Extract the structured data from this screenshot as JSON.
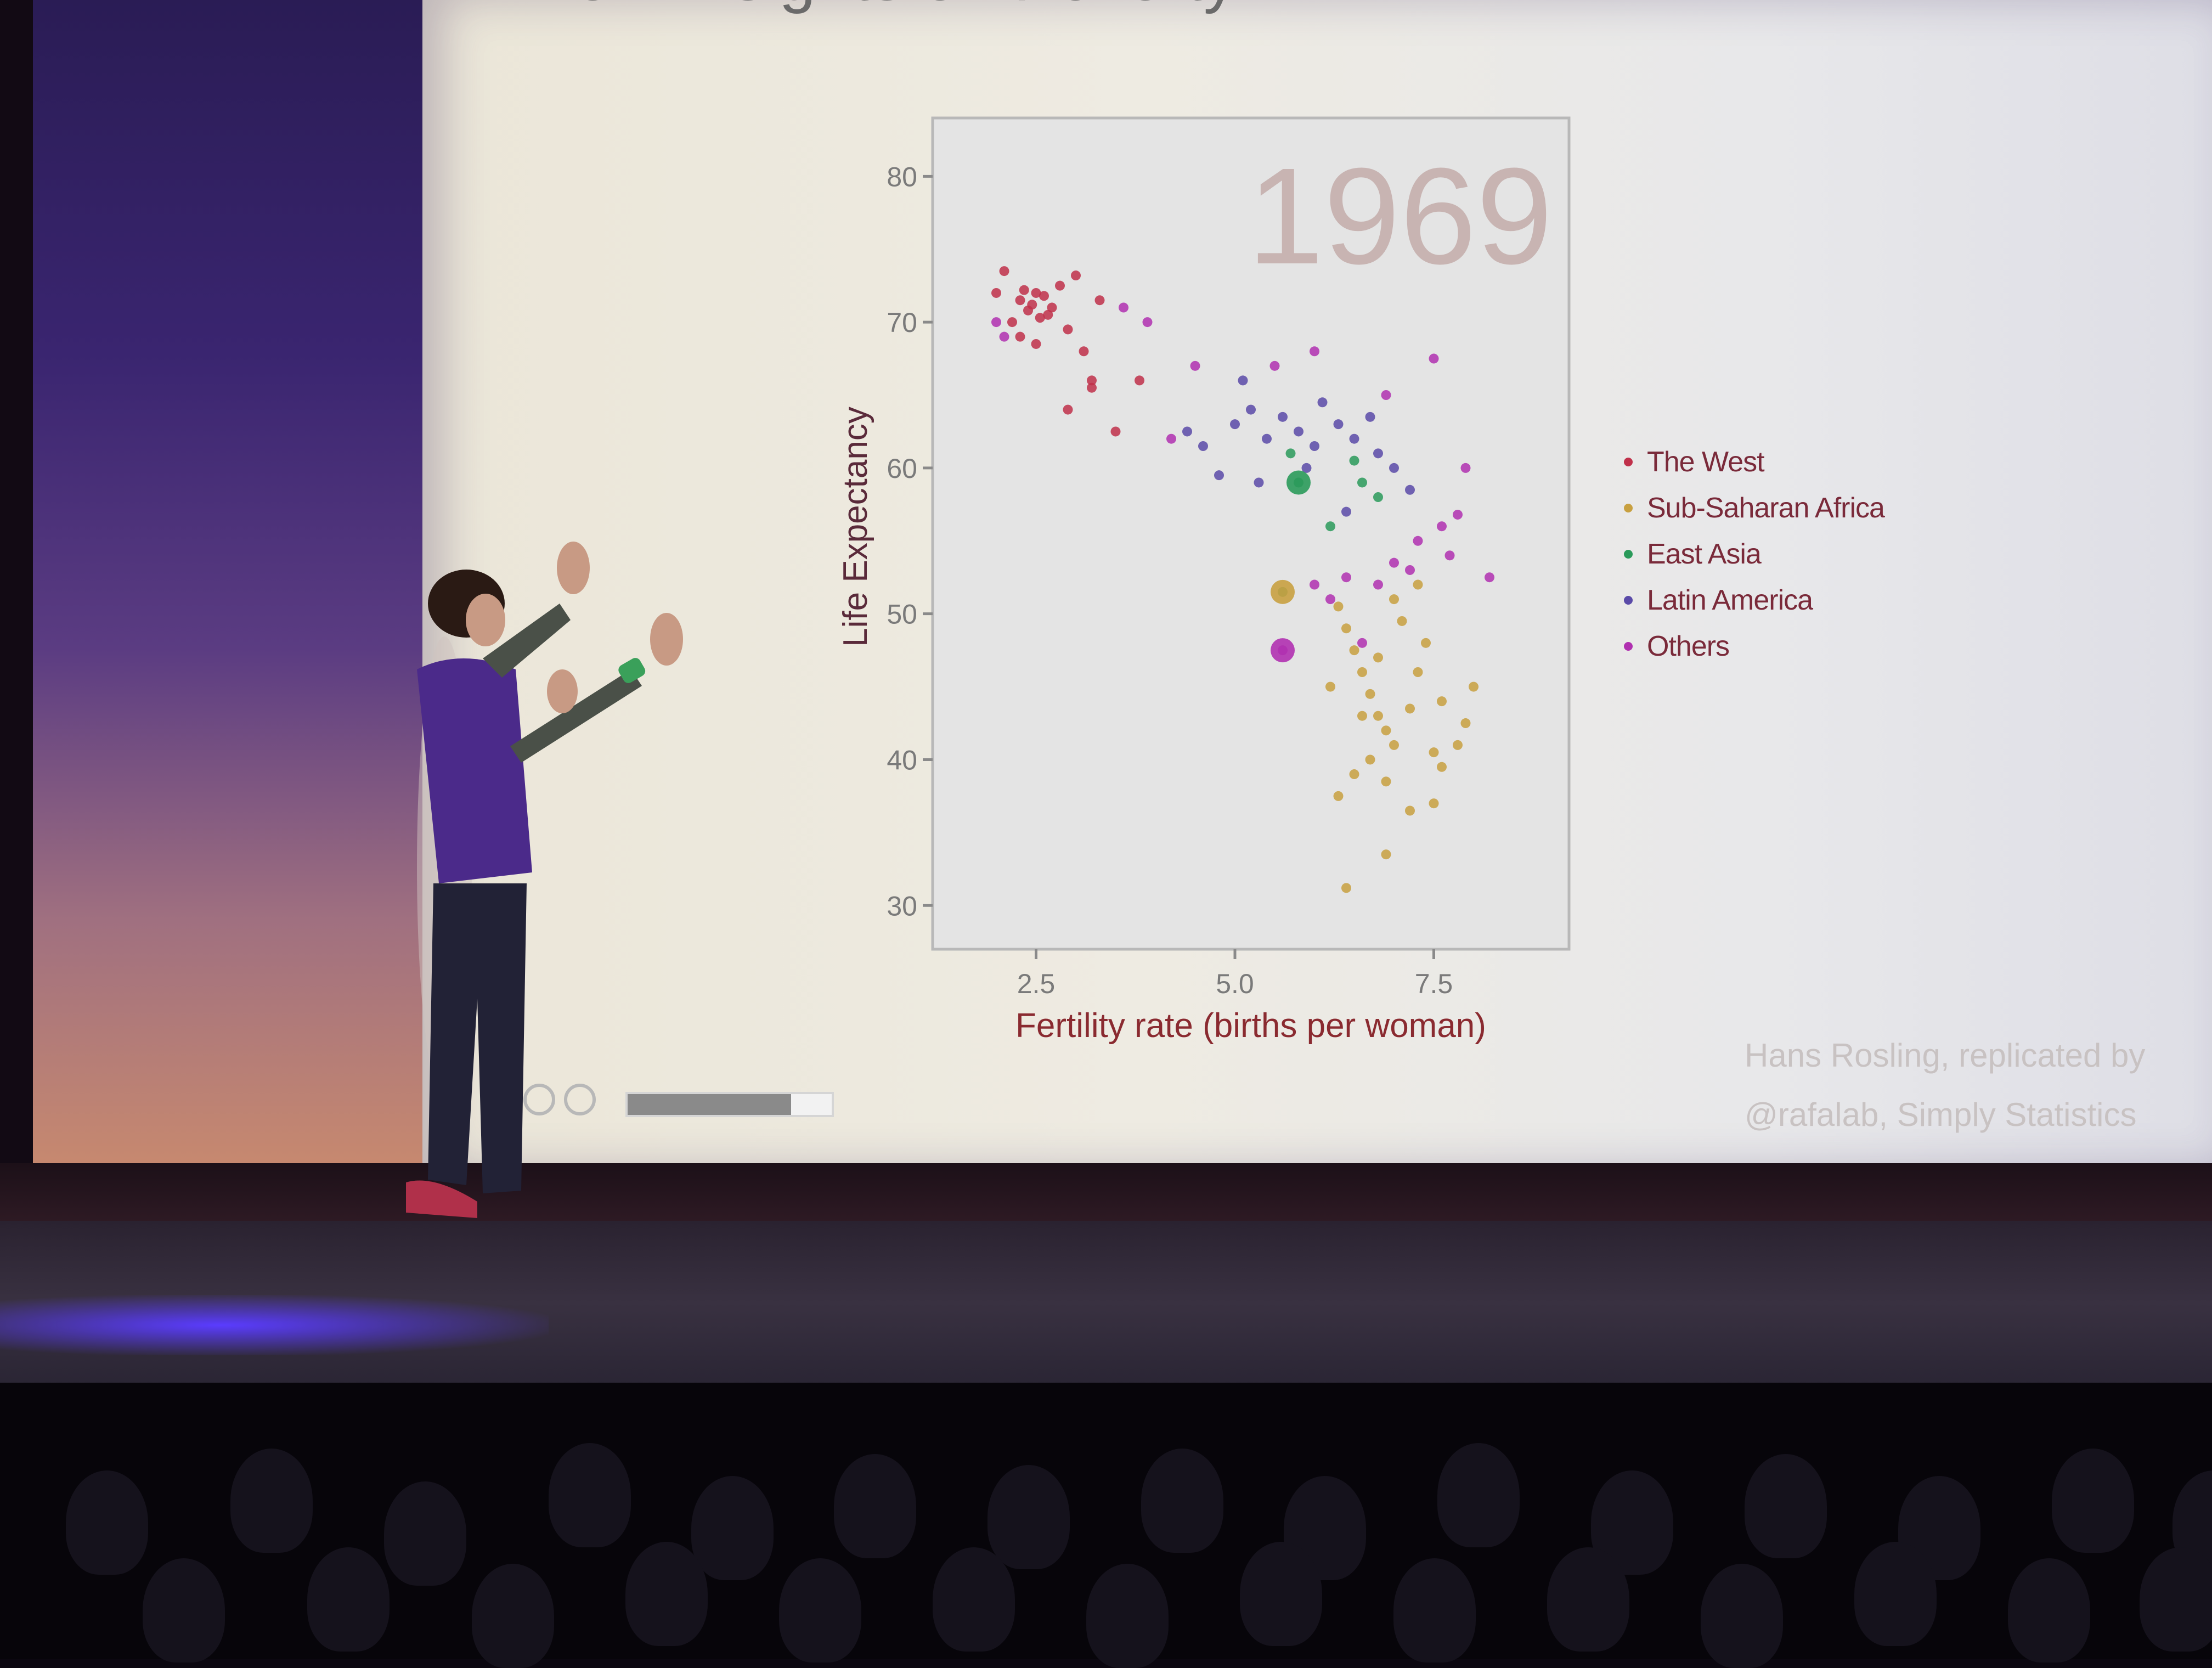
{
  "slide": {
    "title": "New Insights on Poverty",
    "credit_line1": "Hans Rosling, replicated by",
    "credit_line2": "@rafalab, Simply Statistics",
    "progress_fraction": 0.8
  },
  "chart_data": {
    "type": "scatter",
    "title": "1969",
    "xlabel": "Fertility rate (births per woman)",
    "ylabel": "Life Expectancy",
    "xlim": [
      1.2,
      9.2
    ],
    "ylim": [
      27,
      84
    ],
    "xticks": [
      2.5,
      5.0,
      7.5
    ],
    "xtick_labels": [
      "2.5",
      "5.0",
      "7.5"
    ],
    "yticks": [
      30,
      40,
      50,
      60,
      70,
      80
    ],
    "ytick_labels": [
      "30",
      "40",
      "50",
      "60",
      "70",
      "80"
    ],
    "legend_placement": "right",
    "series": [
      {
        "name": "The West",
        "color": "#c0304a",
        "points": [
          [
            2.0,
            72
          ],
          [
            2.1,
            73.5
          ],
          [
            2.2,
            70
          ],
          [
            2.3,
            71.5
          ],
          [
            2.35,
            72.2
          ],
          [
            2.4,
            70.8
          ],
          [
            2.45,
            71.2
          ],
          [
            2.5,
            72
          ],
          [
            2.55,
            70.3
          ],
          [
            2.6,
            71.8
          ],
          [
            2.65,
            70.5
          ],
          [
            2.7,
            71
          ],
          [
            2.8,
            72.5
          ],
          [
            2.9,
            69.5
          ],
          [
            3.0,
            73.2
          ],
          [
            3.1,
            68
          ],
          [
            3.2,
            66
          ],
          [
            3.3,
            71.5
          ],
          [
            2.3,
            69
          ],
          [
            2.5,
            68.5
          ],
          [
            2.9,
            64
          ],
          [
            3.5,
            62.5
          ],
          [
            3.2,
            65.5
          ],
          [
            3.8,
            66
          ]
        ]
      },
      {
        "name": "Sub-Saharan Africa",
        "color": "#c8a040",
        "points": [
          [
            6.3,
            50.5
          ],
          [
            6.4,
            49
          ],
          [
            6.5,
            47.5
          ],
          [
            6.6,
            46
          ],
          [
            6.7,
            44.5
          ],
          [
            6.8,
            43
          ],
          [
            6.9,
            42
          ],
          [
            7.0,
            41
          ],
          [
            6.7,
            40
          ],
          [
            6.5,
            39
          ],
          [
            7.2,
            43.5
          ],
          [
            7.3,
            46
          ],
          [
            7.5,
            40.5
          ],
          [
            7.6,
            39.5
          ],
          [
            7.8,
            41
          ],
          [
            7.9,
            42.5
          ],
          [
            6.2,
            45
          ],
          [
            6.8,
            47
          ],
          [
            7.1,
            49.5
          ],
          [
            7.4,
            48
          ],
          [
            7.0,
            51
          ],
          [
            6.3,
            37.5
          ],
          [
            7.5,
            37
          ],
          [
            6.4,
            31.2
          ],
          [
            6.9,
            33.5
          ],
          [
            7.2,
            36.5
          ],
          [
            7.6,
            44
          ],
          [
            8.0,
            45
          ],
          [
            7.3,
            52
          ],
          [
            6.6,
            43
          ],
          [
            6.9,
            38.5
          ]
        ]
      },
      {
        "name": "East Asia",
        "color": "#2a9a5a",
        "points": [
          [
            5.8,
            59
          ],
          [
            5.6,
            51.5
          ],
          [
            6.5,
            60.5
          ],
          [
            6.6,
            59
          ],
          [
            6.2,
            56
          ],
          [
            5.7,
            61
          ],
          [
            6.8,
            58
          ]
        ]
      },
      {
        "name": "Latin America",
        "color": "#5a4aa8",
        "points": [
          [
            4.8,
            59.5
          ],
          [
            5.0,
            63
          ],
          [
            5.2,
            64
          ],
          [
            5.4,
            62
          ],
          [
            5.6,
            63.5
          ],
          [
            5.8,
            62.5
          ],
          [
            6.0,
            61.5
          ],
          [
            6.3,
            63
          ],
          [
            6.5,
            62
          ],
          [
            6.8,
            61
          ],
          [
            7.0,
            60
          ],
          [
            4.6,
            61.5
          ],
          [
            5.3,
            59
          ],
          [
            5.9,
            60
          ],
          [
            6.4,
            57
          ],
          [
            7.2,
            58.5
          ],
          [
            4.4,
            62.5
          ],
          [
            5.1,
            66
          ],
          [
            6.1,
            64.5
          ],
          [
            6.7,
            63.5
          ]
        ]
      },
      {
        "name": "Others",
        "color": "#b030b0",
        "points": [
          [
            2.0,
            70
          ],
          [
            2.1,
            69
          ],
          [
            5.6,
            47.5
          ],
          [
            6.8,
            52
          ],
          [
            7.0,
            53.5
          ],
          [
            7.2,
            53
          ],
          [
            6.4,
            52.5
          ],
          [
            6.0,
            52
          ],
          [
            6.2,
            51
          ],
          [
            7.6,
            56
          ],
          [
            7.8,
            56.8
          ],
          [
            7.3,
            55
          ],
          [
            6.6,
            48
          ],
          [
            4.2,
            62
          ],
          [
            4.5,
            67
          ],
          [
            3.9,
            70
          ],
          [
            3.6,
            71
          ],
          [
            7.9,
            60
          ],
          [
            8.2,
            52.5
          ],
          [
            7.7,
            54
          ],
          [
            5.5,
            67
          ],
          [
            6.0,
            68
          ],
          [
            6.9,
            65
          ],
          [
            7.5,
            67.5
          ]
        ]
      }
    ]
  }
}
